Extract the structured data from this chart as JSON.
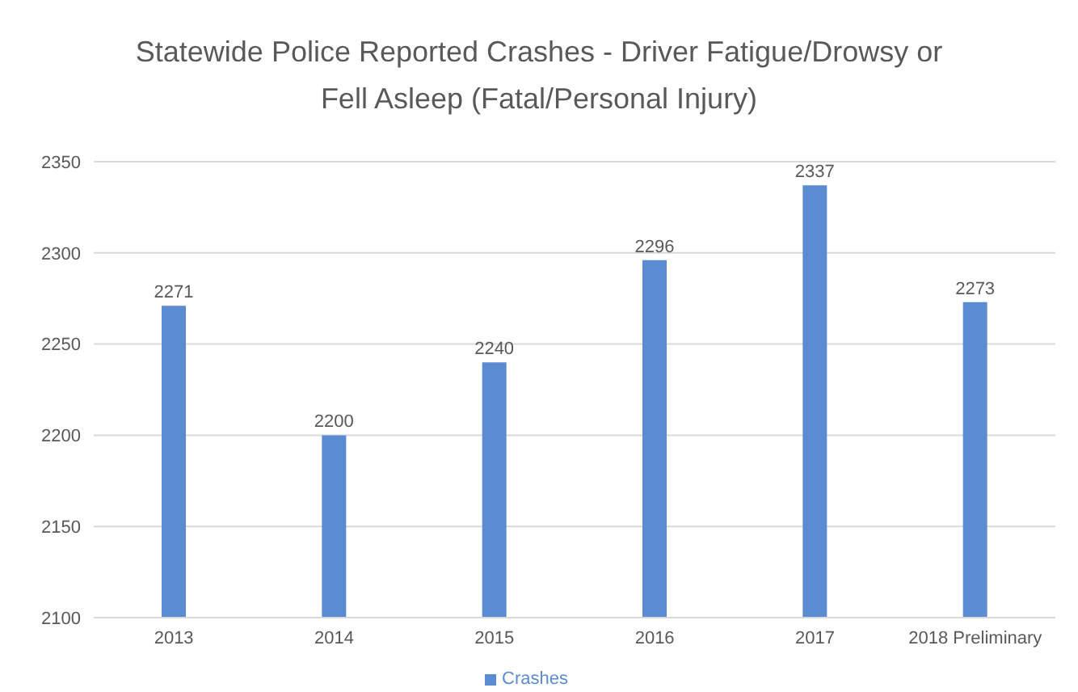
{
  "chart_data": {
    "type": "bar",
    "title": "Statewide Police Reported Crashes - Driver Fatigue/Drowsy or Fell Asleep (Fatal/Personal Injury)",
    "categories": [
      "2013",
      "2014",
      "2015",
      "2016",
      "2017",
      "2018 Preliminary"
    ],
    "series": [
      {
        "name": "Crashes",
        "color": "#5b8bd0",
        "values": [
          2271,
          2200,
          2240,
          2296,
          2337,
          2273
        ]
      }
    ],
    "ylim": [
      2100,
      2350
    ],
    "yticks": [
      2100,
      2150,
      2200,
      2250,
      2300,
      2350
    ],
    "grid": "y",
    "legend": "bottom",
    "data_labels": true
  }
}
